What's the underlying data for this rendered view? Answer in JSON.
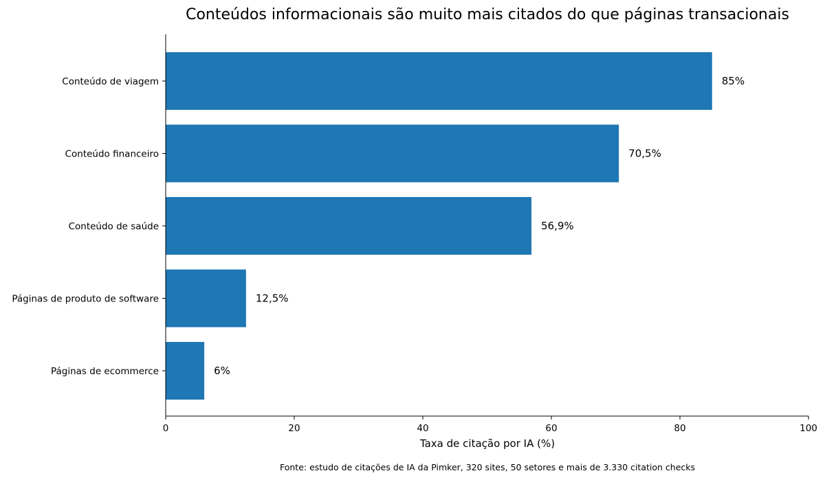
{
  "chart_data": {
    "type": "bar",
    "orientation": "horizontal",
    "title": "Conteúdos informacionais são muito mais citados do que páginas transacionais",
    "xlabel": "Taxa de citação por IA (%)",
    "ylabel": "",
    "xlim": [
      0,
      100
    ],
    "xticks": [
      0,
      20,
      40,
      60,
      80,
      100
    ],
    "grid": false,
    "bar_color": "#1f77b4",
    "categories": [
      "Conteúdo de viagem",
      "Conteúdo financeiro",
      "Conteúdo de saúde",
      "Páginas de produto de software",
      "Páginas de ecommerce"
    ],
    "values": [
      85,
      70.5,
      56.9,
      12.5,
      6
    ],
    "value_labels": [
      "85%",
      "70,5%",
      "56,9%",
      "12,5%",
      "6%"
    ],
    "source_note": "Fonte: estudo de citações de IA da Pimker, 320 sites, 50 setores e mais de 3.330 citation checks"
  }
}
